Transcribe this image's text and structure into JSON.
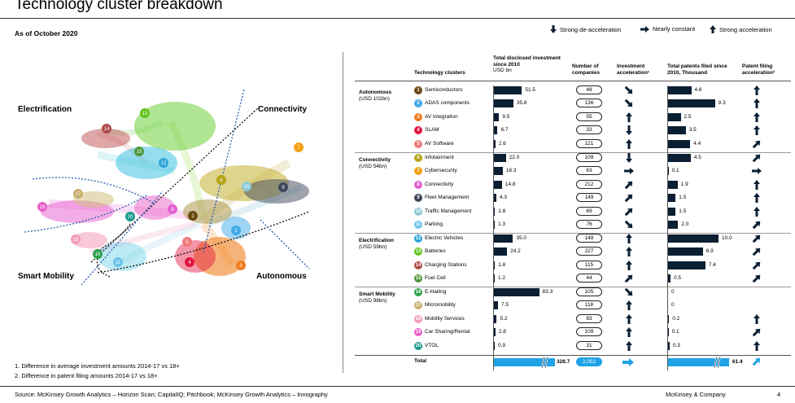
{
  "title": "Technology cluster breakdown",
  "as_of": "As of October 2020",
  "legend": {
    "strong_decel": "Strong de-acceleration",
    "constant": "Nearly constant",
    "strong_accel": "Strong acceleration"
  },
  "network": {
    "regions": {
      "electrification": "Electrification",
      "connectivity": "Connectivity",
      "smart_mobility": "Smart Mobility",
      "autonomous": "Autonomous"
    }
  },
  "table": {
    "headers": {
      "clusters": "Technology clusters",
      "investment_title": "Total disclosed investment since 2010",
      "investment_unit": "USD bn",
      "companies": "Number of companies",
      "inv_accel": "Investment acceleration¹",
      "patents_title": "Total patents filed since 2010, Thousand",
      "patent_accel": "Patent filing acceleration²"
    },
    "groups": [
      {
        "name": "Autonomous",
        "sub": "(USD 102bn)"
      },
      {
        "name": "Connectivity",
        "sub": "(USD 54bn)"
      },
      {
        "name": "Electrification",
        "sub": "(USD 59bn)"
      },
      {
        "name": "Smart Mobility",
        "sub": "(USD 98bn)"
      }
    ],
    "rows": [
      {
        "num": "1",
        "color": "#6b4a12",
        "name": "Semiconductors",
        "inv": "51.5",
        "invv": 51.5,
        "companies": "48",
        "inv_accel": "down-right",
        "pat": "4.6",
        "patv": 4.6,
        "pat_accel": "up"
      },
      {
        "num": "2",
        "color": "#3fa9e8",
        "name": "ADAS components",
        "inv": "35.8",
        "invv": 35.8,
        "companies": "136",
        "inv_accel": "down-right",
        "pat": "9.3",
        "patv": 9.3,
        "pat_accel": "up"
      },
      {
        "num": "3",
        "color": "#ef7d1e",
        "name": "AV Integration",
        "inv": "9.5",
        "invv": 9.5,
        "companies": "55",
        "inv_accel": "up",
        "pat": "2.5",
        "patv": 2.5,
        "pat_accel": "up"
      },
      {
        "num": "4",
        "color": "#e2143f",
        "name": "SLAM",
        "inv": "6.7",
        "invv": 6.7,
        "companies": "33",
        "inv_accel": "down",
        "pat": "3.5",
        "patv": 3.5,
        "pat_accel": "up"
      },
      {
        "num": "5",
        "color": "#f07a7a",
        "name": "AV Software",
        "inv": "2.6",
        "invv": 2.6,
        "companies": "121",
        "inv_accel": "up",
        "pat": "4.4",
        "patv": 4.4,
        "pat_accel": "up-right"
      },
      {
        "num": "6",
        "color": "#b5a516",
        "name": "Infotainment",
        "inv": "22.0",
        "invv": 22.0,
        "companies": "109",
        "inv_accel": "down",
        "pat": "4.5",
        "patv": 4.5,
        "pat_accel": "up-right"
      },
      {
        "num": "7",
        "color": "#f2a319",
        "name": "Cybersecurity",
        "inv": "16.3",
        "invv": 16.3,
        "companies": "63",
        "inv_accel": "right",
        "pat": "0.1",
        "patv": 0.1,
        "pat_accel": "right"
      },
      {
        "num": "8",
        "color": "#e35fd0",
        "name": "Connectivity",
        "inv": "14.8",
        "invv": 14.8,
        "companies": "212",
        "inv_accel": "up-right",
        "pat": "1.9",
        "patv": 1.9,
        "pat_accel": "up"
      },
      {
        "num": "9",
        "color": "#3d4759",
        "name": "Fleet Management",
        "inv": "4.3",
        "invv": 4.3,
        "companies": "149",
        "inv_accel": "up-right",
        "pat": "1.5",
        "patv": 1.5,
        "pat_accel": "up"
      },
      {
        "num": "10",
        "color": "#8cc9d8",
        "name": "Traffic Management",
        "inv": "1.8",
        "invv": 1.8,
        "companies": "69",
        "inv_accel": "up-right",
        "pat": "1.5",
        "patv": 1.5,
        "pat_accel": "up"
      },
      {
        "num": "11",
        "color": "#6cc3e8",
        "name": "Parking",
        "inv": "1.3",
        "invv": 1.3,
        "companies": "76",
        "inv_accel": "down-right",
        "pat": "2.0",
        "patv": 2.0,
        "pat_accel": "up-right"
      },
      {
        "num": "12",
        "color": "#2da4d9",
        "name": "Electric Vehicles",
        "inv": "35.0",
        "invv": 35.0,
        "companies": "149",
        "inv_accel": "up",
        "pat": "10.0",
        "patv": 10.0,
        "pat_accel": "up-right"
      },
      {
        "num": "13",
        "color": "#63c21f",
        "name": "Batteries",
        "inv": "24.2",
        "invv": 24.2,
        "companies": "227",
        "inv_accel": "up",
        "pat": "6.9",
        "patv": 6.9,
        "pat_accel": "up-right"
      },
      {
        "num": "14",
        "color": "#b04a4a",
        "name": "Charging Stations",
        "inv": "1.8",
        "invv": 1.8,
        "companies": "115",
        "inv_accel": "up",
        "pat": "7.4",
        "patv": 7.4,
        "pat_accel": "up-right"
      },
      {
        "num": "15",
        "color": "#4c9a3a",
        "name": "Fuel Cell",
        "inv": "1.2",
        "invv": 1.2,
        "companies": "44",
        "inv_accel": "up-right",
        "pat": "0.5",
        "patv": 0.5,
        "pat_accel": "up-right"
      },
      {
        "num": "16",
        "color": "#2aa24b",
        "name": "E-Hailing",
        "inv": "83.3",
        "invv": 83.3,
        "companies": "105",
        "inv_accel": "down-right",
        "pat": "0",
        "patv": 0,
        "pat_accel": ""
      },
      {
        "num": "17",
        "color": "#c8b070",
        "name": "Micromobility",
        "inv": "7.5",
        "invv": 7.5,
        "companies": "118",
        "inv_accel": "up",
        "pat": "0",
        "patv": 0,
        "pat_accel": ""
      },
      {
        "num": "18",
        "color": "#f29bb8",
        "name": "Mobility Services",
        "inv": "5.2",
        "invv": 5.2,
        "companies": "83",
        "inv_accel": "up",
        "pat": "0.2",
        "patv": 0.2,
        "pat_accel": "up"
      },
      {
        "num": "19",
        "color": "#e960c8",
        "name": "Car Sharing/Rental",
        "inv": "2.8",
        "invv": 2.8,
        "companies": "109",
        "inv_accel": "up",
        "pat": "0.1",
        "patv": 0.1,
        "pat_accel": "up-right"
      },
      {
        "num": "20",
        "color": "#1d9a8a",
        "name": "VTOL",
        "inv": "0.9",
        "invv": 0.9,
        "companies": "31",
        "inv_accel": "up",
        "pat": "0.3",
        "patv": 0.3,
        "pat_accel": "up"
      }
    ],
    "total": {
      "label": "Total",
      "inv": "328.7",
      "companies": "2,052",
      "pat": "61.4"
    }
  },
  "footnotes": [
    "1. Difference in average investment amounts 2014-17 vs 18+",
    "2. Difference in patent filing amounts 2014-17 vs 18+"
  ],
  "source": "Source: McKinsey Growth Analytics – Horizon Scan; CapitalIQ; Pitchbook; McKinsey Growth Analytics – Innography",
  "brand": "McKinsey & Company",
  "page": "4",
  "colors": {
    "navy": "#0b1f33",
    "total_blue": "#1fa3e6"
  }
}
